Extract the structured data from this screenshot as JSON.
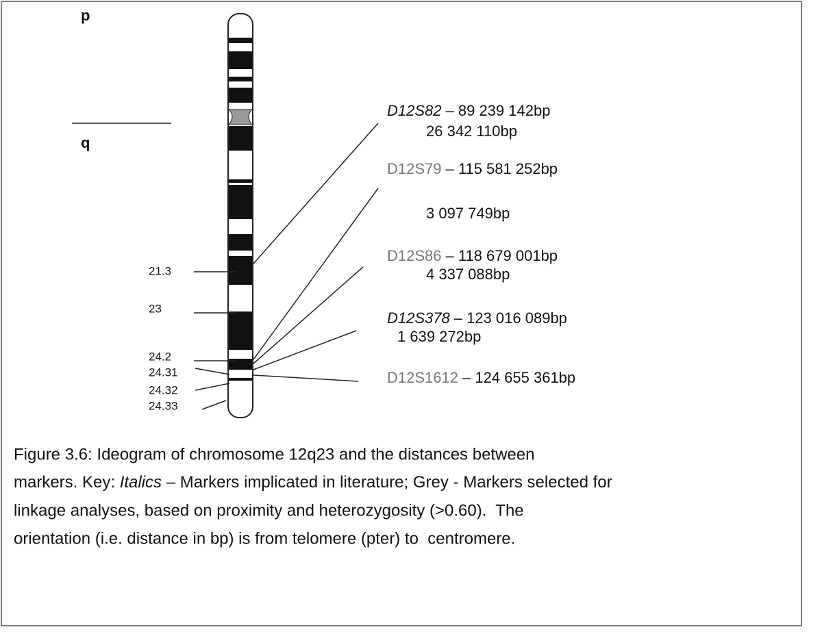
{
  "arm_labels": {
    "p": "p",
    "q": "q"
  },
  "bands": [
    "21.3",
    "23",
    "24.2",
    "24.31",
    "24.32",
    "24.33"
  ],
  "markers": [
    {
      "name": "D12S82",
      "position": "– 89 239 142bp",
      "style": "italic"
    },
    {
      "name": "D12S79",
      "position": "– 115 581 252bp",
      "style": "grey"
    },
    {
      "name": "D12S86",
      "position": "– 118 679 001bp",
      "style": "grey"
    },
    {
      "name": "D12S378",
      "position": "– 123 016 089bp",
      "style": "italic"
    },
    {
      "name": "D12S1612",
      "position": "– 124 655 361bp",
      "style": "grey"
    }
  ],
  "distances": [
    "26 342 110bp",
    "3 097 749bp",
    "4 337 088bp",
    "1 639 272bp"
  ],
  "caption": {
    "line1": "Figure 3.6: Ideogram of chromosome 12q23 and the distances between",
    "line2a": "markers. Key: ",
    "line2b": "Italics",
    "line2c": " – Markers implicated in literature; Grey - Markers selected for",
    "line3": "linkage analyses, based on proximity and heterozygosity (>0.60).  The",
    "line4": "orientation (i.e. distance in bp) is from telomere (pter) to  centromere."
  }
}
